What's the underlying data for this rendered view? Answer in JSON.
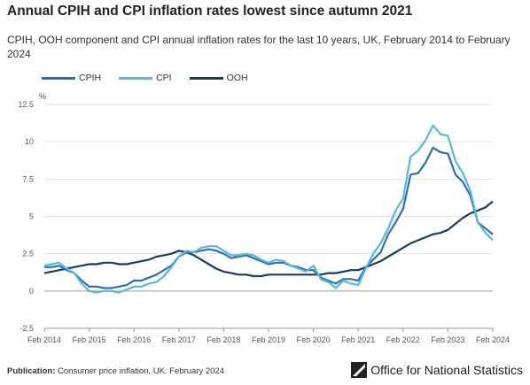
{
  "title": "Annual CPIH and CPI inflation rates lowest since autumn 2021",
  "subtitle": "CPIH, OOH component and CPI annual inflation rates for the last 10 years, UK, February 2014 to February 2024",
  "footer": {
    "label": "Publication:",
    "text": "Consumer price inflation, UK: February 2024"
  },
  "logo": {
    "text": "Office for National Statistics",
    "icon": "ons-logo-icon"
  },
  "chart_data": {
    "type": "line",
    "ylabel": "%",
    "ylim": [
      -2.5,
      12.5
    ],
    "yticks": [
      -2.5,
      0,
      2.5,
      5,
      7.5,
      10,
      12.5
    ],
    "ytick_labels": [
      "-2.5",
      "0",
      "2.5",
      "5",
      "7.5",
      "10",
      "12.5"
    ],
    "xlim": [
      2014.083,
      2024.083
    ],
    "xtick_labels": [
      "Feb 2014",
      "Feb 2015",
      "Feb 2016",
      "Feb 2017",
      "Feb 2018",
      "Feb 2019",
      "Feb 2020",
      "Feb 2021",
      "Feb 2022",
      "Feb 2023",
      "Feb 2024"
    ],
    "xticks": [
      2014.083,
      2015.083,
      2016.083,
      2017.083,
      2018.083,
      2019.083,
      2020.083,
      2021.083,
      2022.083,
      2023.083,
      2024.083
    ],
    "grid": true,
    "legend_position": "top-left",
    "series": [
      {
        "name": "CPIH",
        "color": "#2f6eb5",
        "x": [
          2014.083,
          2014.25,
          2014.417,
          2014.583,
          2014.75,
          2014.917,
          2015.083,
          2015.25,
          2015.417,
          2015.583,
          2015.75,
          2015.917,
          2016.083,
          2016.25,
          2016.417,
          2016.583,
          2016.75,
          2016.917,
          2017.083,
          2017.25,
          2017.417,
          2017.583,
          2017.75,
          2017.917,
          2018.083,
          2018.25,
          2018.417,
          2018.583,
          2018.75,
          2018.917,
          2019.083,
          2019.25,
          2019.417,
          2019.583,
          2019.75,
          2019.917,
          2020.083,
          2020.25,
          2020.417,
          2020.583,
          2020.75,
          2020.917,
          2021.083,
          2021.25,
          2021.417,
          2021.583,
          2021.75,
          2021.917,
          2022.083,
          2022.25,
          2022.417,
          2022.583,
          2022.75,
          2022.917,
          2023.083,
          2023.25,
          2023.417,
          2023.583,
          2023.75,
          2023.917,
          2024.083
        ],
        "values": [
          1.6,
          1.6,
          1.7,
          1.4,
          1.2,
          0.7,
          0.3,
          0.3,
          0.2,
          0.2,
          0.3,
          0.4,
          0.7,
          0.7,
          0.9,
          1.1,
          1.4,
          1.7,
          2.3,
          2.6,
          2.6,
          2.7,
          2.8,
          2.7,
          2.5,
          2.2,
          2.3,
          2.4,
          2.2,
          2.0,
          1.8,
          1.9,
          1.9,
          1.7,
          1.6,
          1.4,
          1.4,
          0.9,
          0.7,
          0.5,
          0.8,
          0.8,
          0.7,
          1.6,
          2.1,
          2.6,
          3.8,
          4.6,
          5.5,
          7.8,
          7.9,
          8.6,
          9.6,
          9.3,
          9.2,
          7.8,
          7.3,
          6.4,
          4.6,
          4.2,
          3.8
        ]
      },
      {
        "name": "CPI",
        "color": "#57b7e0",
        "x": [
          2014.083,
          2014.25,
          2014.417,
          2014.583,
          2014.75,
          2014.917,
          2015.083,
          2015.25,
          2015.417,
          2015.583,
          2015.75,
          2015.917,
          2016.083,
          2016.25,
          2016.417,
          2016.583,
          2016.75,
          2016.917,
          2017.083,
          2017.25,
          2017.417,
          2017.583,
          2017.75,
          2017.917,
          2018.083,
          2018.25,
          2018.417,
          2018.583,
          2018.75,
          2018.917,
          2019.083,
          2019.25,
          2019.417,
          2019.583,
          2019.75,
          2019.917,
          2020.083,
          2020.25,
          2020.417,
          2020.583,
          2020.75,
          2020.917,
          2021.083,
          2021.25,
          2021.417,
          2021.583,
          2021.75,
          2021.917,
          2022.083,
          2022.25,
          2022.417,
          2022.583,
          2022.75,
          2022.917,
          2023.083,
          2023.25,
          2023.417,
          2023.583,
          2023.75,
          2023.917,
          2024.083
        ],
        "values": [
          1.7,
          1.8,
          1.9,
          1.5,
          1.2,
          0.5,
          0.0,
          -0.1,
          0.0,
          0.0,
          -0.1,
          0.1,
          0.3,
          0.3,
          0.5,
          0.6,
          1.0,
          1.6,
          2.3,
          2.7,
          2.6,
          2.9,
          3.0,
          3.0,
          2.7,
          2.4,
          2.4,
          2.5,
          2.4,
          2.1,
          1.9,
          2.1,
          2.0,
          1.7,
          1.5,
          1.3,
          1.7,
          0.8,
          0.6,
          0.2,
          0.7,
          0.5,
          0.4,
          1.5,
          2.5,
          3.2,
          4.2,
          5.4,
          6.2,
          9.0,
          9.4,
          10.1,
          11.1,
          10.5,
          10.4,
          8.7,
          7.9,
          6.7,
          4.6,
          3.9,
          3.4
        ]
      },
      {
        "name": "OOH",
        "color": "#1a3d5c",
        "x": [
          2014.083,
          2014.25,
          2014.417,
          2014.583,
          2014.75,
          2014.917,
          2015.083,
          2015.25,
          2015.417,
          2015.583,
          2015.75,
          2015.917,
          2016.083,
          2016.25,
          2016.417,
          2016.583,
          2016.75,
          2016.917,
          2017.083,
          2017.25,
          2017.417,
          2017.583,
          2017.75,
          2017.917,
          2018.083,
          2018.25,
          2018.417,
          2018.583,
          2018.75,
          2018.917,
          2019.083,
          2019.25,
          2019.417,
          2019.583,
          2019.75,
          2019.917,
          2020.083,
          2020.25,
          2020.417,
          2020.583,
          2020.75,
          2020.917,
          2021.083,
          2021.25,
          2021.417,
          2021.583,
          2021.75,
          2021.917,
          2022.083,
          2022.25,
          2022.417,
          2022.583,
          2022.75,
          2022.917,
          2023.083,
          2023.25,
          2023.417,
          2023.583,
          2023.75,
          2023.917,
          2024.083
        ],
        "values": [
          1.2,
          1.3,
          1.4,
          1.5,
          1.6,
          1.7,
          1.8,
          1.8,
          1.9,
          1.9,
          1.8,
          1.8,
          1.9,
          2.0,
          2.1,
          2.3,
          2.4,
          2.5,
          2.7,
          2.6,
          2.4,
          2.1,
          1.8,
          1.5,
          1.3,
          1.2,
          1.1,
          1.1,
          1.0,
          1.0,
          1.1,
          1.1,
          1.1,
          1.1,
          1.1,
          1.1,
          1.1,
          1.1,
          1.2,
          1.2,
          1.3,
          1.4,
          1.4,
          1.6,
          1.8,
          2.0,
          2.3,
          2.6,
          2.9,
          3.2,
          3.4,
          3.6,
          3.8,
          3.9,
          4.1,
          4.5,
          4.9,
          5.2,
          5.4,
          5.6,
          6.0
        ]
      }
    ]
  }
}
